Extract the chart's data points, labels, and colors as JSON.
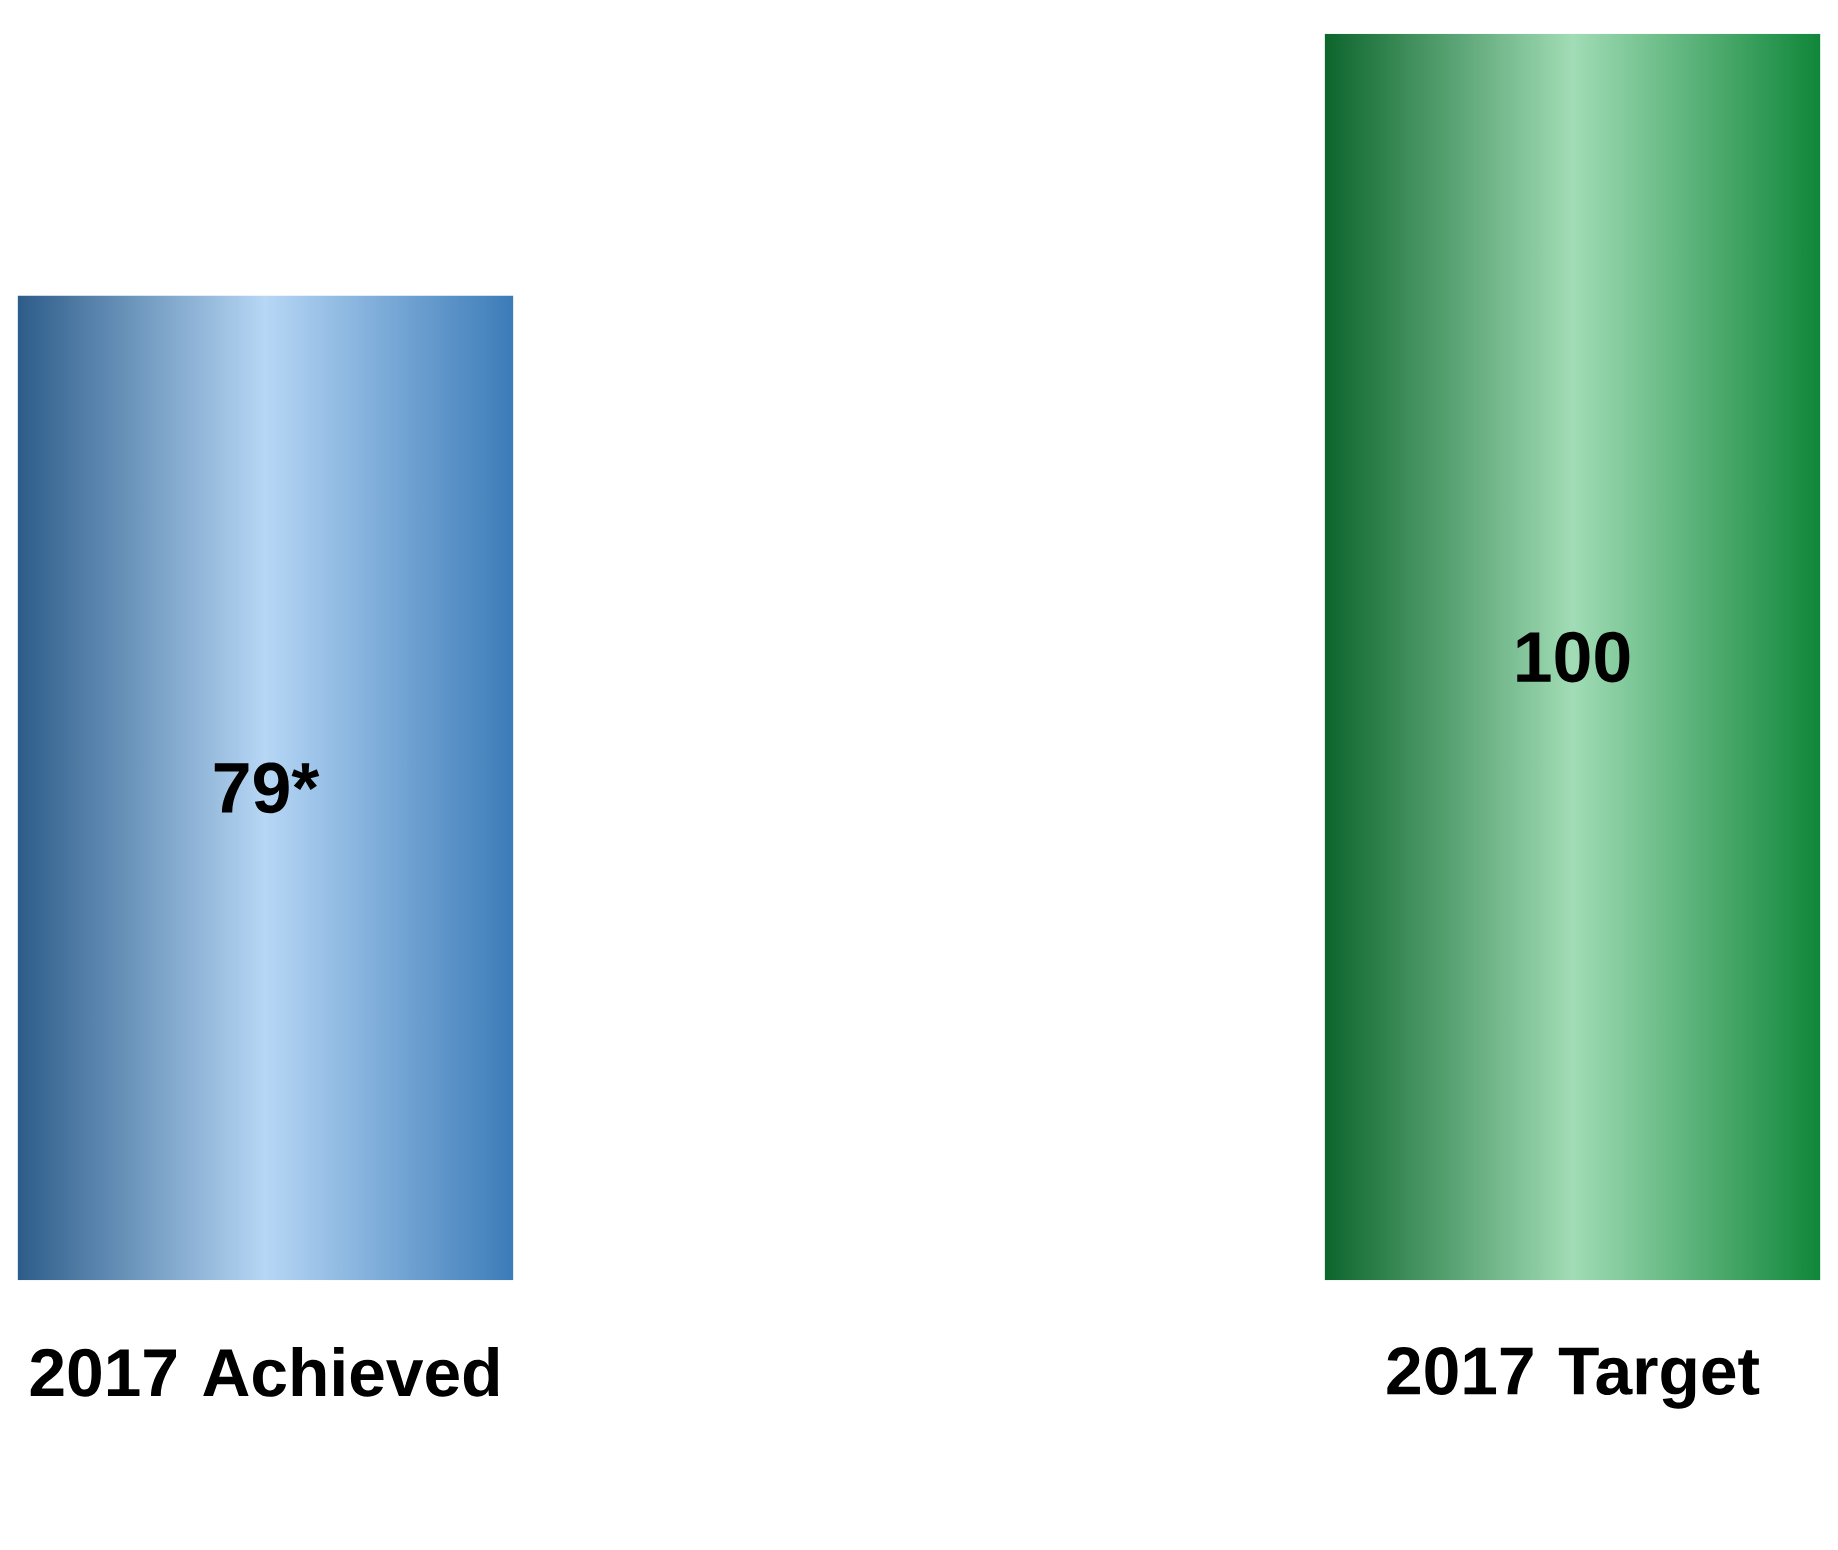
{
  "chart_data": {
    "type": "bar",
    "categories": [
      "2017 Achieved",
      "2017 Target"
    ],
    "values": [
      79,
      100
    ],
    "colors": [
      "#4a9ae6",
      "#14a848"
    ],
    "value_labels": [
      "79*",
      "100"
    ]
  }
}
